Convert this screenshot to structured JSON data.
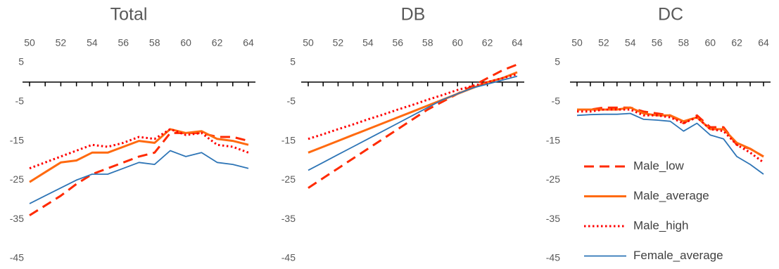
{
  "chart_data": [
    {
      "type": "line",
      "title": "Total",
      "x": [
        50,
        51,
        52,
        53,
        54,
        55,
        56,
        57,
        58,
        59,
        60,
        61,
        62,
        63,
        64
      ],
      "xlim": [
        50,
        64
      ],
      "xticks": [
        50,
        52,
        54,
        56,
        58,
        60,
        62,
        64
      ],
      "ylim": [
        -45,
        5
      ],
      "yticks": [
        5,
        -5,
        -15,
        -25,
        -35,
        -45
      ],
      "series": [
        {
          "color": "#ff2a00",
          "dash": "dashed",
          "values": [
            -34,
            -31.5,
            -29,
            -26,
            -23.5,
            -22,
            -20.5,
            -19,
            -18,
            -13,
            -13,
            -13,
            -14,
            -14,
            -15
          ]
        },
        {
          "color": "#ff6a10",
          "dash": "solid",
          "values": [
            -25.5,
            -23,
            -20.5,
            -20,
            -18,
            -18,
            -16.5,
            -15,
            -15.5,
            -12,
            -13,
            -12.5,
            -14.5,
            -15,
            -16
          ]
        },
        {
          "color": "#ff0000",
          "dash": "dotted",
          "values": [
            -22,
            -20.5,
            -19,
            -17.5,
            -16,
            -16.5,
            -15.5,
            -14,
            -14.5,
            -12,
            -13.5,
            -13,
            -16,
            -16.5,
            -18
          ]
        },
        {
          "color": "#2e75b6",
          "dash": "thin",
          "values": [
            -31,
            -29,
            -27,
            -25,
            -23.5,
            -23.5,
            -22,
            -20.5,
            -21,
            -17.5,
            -19,
            -18,
            -20.5,
            -21,
            -22
          ]
        }
      ]
    },
    {
      "type": "line",
      "title": "DB",
      "x": [
        50,
        51,
        52,
        53,
        54,
        55,
        56,
        57,
        58,
        59,
        60,
        61,
        62,
        63,
        64
      ],
      "xlim": [
        50,
        64
      ],
      "xticks": [
        50,
        52,
        54,
        56,
        58,
        60,
        62,
        64
      ],
      "ylim": [
        -45,
        5
      ],
      "yticks": [
        5,
        -5,
        -15,
        -25,
        -35,
        -45
      ],
      "series": [
        {
          "color": "#ff2a00",
          "dash": "dashed",
          "values": [
            -27,
            -24.5,
            -22,
            -19.5,
            -17,
            -14.5,
            -12,
            -9.5,
            -7,
            -5,
            -3,
            -1,
            1,
            3,
            4.5
          ]
        },
        {
          "color": "#ff6a10",
          "dash": "solid",
          "values": [
            -18,
            -16.5,
            -15,
            -13.5,
            -12,
            -10.5,
            -9,
            -7.5,
            -6,
            -4.5,
            -3,
            -1.5,
            0,
            1,
            2.5
          ]
        },
        {
          "color": "#ff0000",
          "dash": "dotted",
          "values": [
            -14.5,
            -13.3,
            -12,
            -10.8,
            -9.5,
            -8.3,
            -7,
            -5.8,
            -4.5,
            -3.3,
            -2,
            -1,
            0,
            1,
            2
          ]
        },
        {
          "color": "#2e75b6",
          "dash": "thin",
          "values": [
            -22.5,
            -20.5,
            -18.5,
            -16.5,
            -14.5,
            -12.5,
            -10.5,
            -8.5,
            -6.5,
            -4.5,
            -3,
            -1.5,
            -0.5,
            0.5,
            1.5
          ]
        }
      ]
    },
    {
      "type": "line",
      "title": "DC",
      "x": [
        50,
        51,
        52,
        53,
        54,
        55,
        56,
        57,
        58,
        59,
        60,
        61,
        62,
        63,
        64
      ],
      "xlim": [
        50,
        64
      ],
      "xticks": [
        50,
        52,
        54,
        56,
        58,
        60,
        62,
        64
      ],
      "ylim": [
        -45,
        5
      ],
      "yticks": [
        5,
        -5,
        -15,
        -25,
        -35,
        -45
      ],
      "legend": "lower-left",
      "series": [
        {
          "name": "Male_low",
          "color": "#ff2a00",
          "dash": "dashed",
          "values": [
            -7,
            -7,
            -6.5,
            -6.5,
            -6.5,
            -7.5,
            -8,
            -8.5,
            -10.5,
            -8.5,
            -11.5,
            -11.5,
            -16,
            -17,
            -19
          ]
        },
        {
          "name": "Male_average",
          "color": "#ff6a10",
          "dash": "solid",
          "values": [
            -7,
            -7,
            -7,
            -7,
            -6.5,
            -8,
            -8.5,
            -8.5,
            -10,
            -9,
            -12,
            -12,
            -15.5,
            -17,
            -19
          ]
        },
        {
          "name": "Male_high",
          "color": "#ff0000",
          "dash": "dotted",
          "values": [
            -7.5,
            -7.5,
            -7,
            -7,
            -7,
            -8.5,
            -8.5,
            -9,
            -10.5,
            -9,
            -12,
            -12.5,
            -16,
            -18,
            -20.5
          ]
        },
        {
          "name": "Female_average",
          "color": "#2e75b6",
          "dash": "thin",
          "values": [
            -8.5,
            -8.3,
            -8.2,
            -8.2,
            -8,
            -9.5,
            -9.7,
            -10,
            -12.5,
            -10.5,
            -13.5,
            -14.5,
            -19,
            -21,
            -23.5
          ]
        }
      ]
    }
  ]
}
